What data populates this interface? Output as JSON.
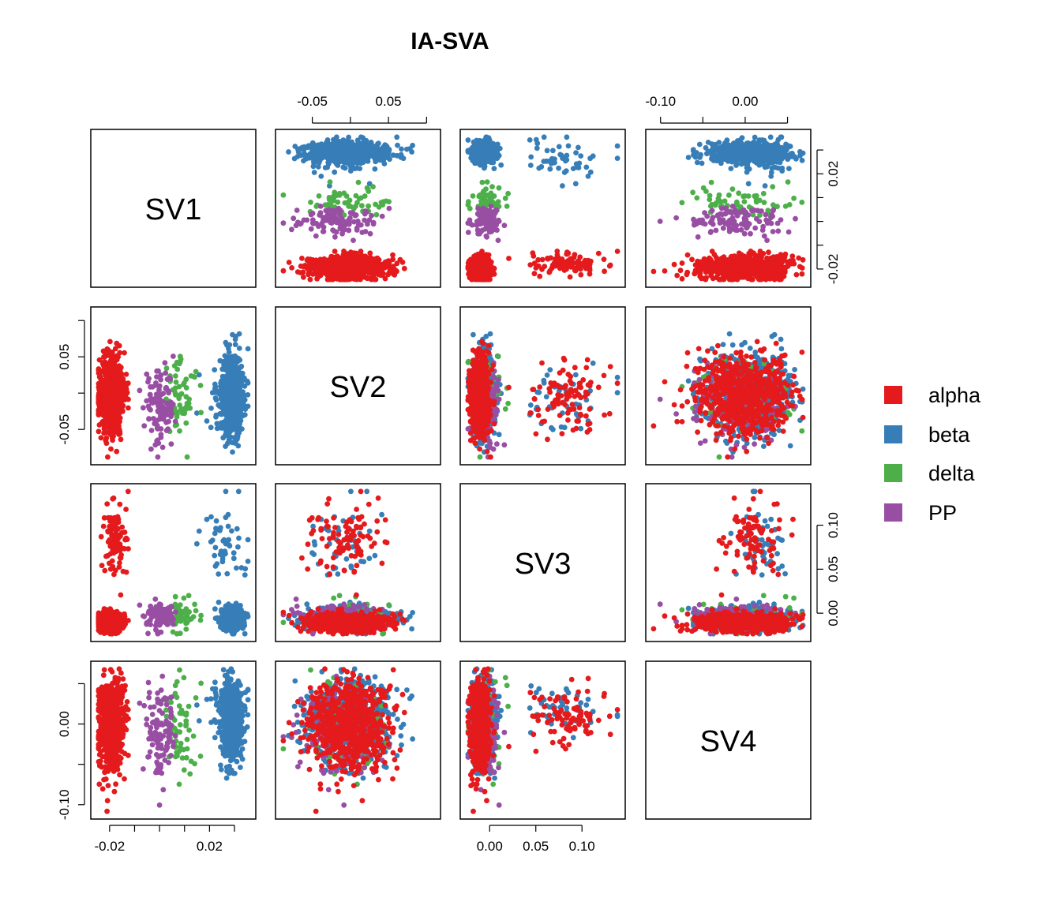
{
  "chart_data": {
    "type": "scatter",
    "title": "IA-SVA",
    "variables": [
      "SV1",
      "SV2",
      "SV3",
      "SV4"
    ],
    "ranges": {
      "SV1": [
        -0.025,
        0.036
      ],
      "SV2": [
        -0.09,
        0.11
      ],
      "SV3": [
        -0.025,
        0.14
      ],
      "SV4": [
        -0.11,
        0.07
      ]
    },
    "ticks": {
      "SV1": {
        "values": [
          -0.02,
          -0.01,
          0.0,
          0.01,
          0.02,
          0.03
        ],
        "labels": [
          "-0.02",
          "",
          "",
          "",
          "0.02",
          ""
        ]
      },
      "SV2": {
        "values": [
          -0.05,
          0.0,
          0.05,
          0.1
        ],
        "labels": [
          "-0.05",
          "",
          "0.05",
          ""
        ]
      },
      "SV3": {
        "values": [
          0.0,
          0.05,
          0.1
        ],
        "labels": [
          "0.00",
          "0.05",
          "0.10"
        ]
      },
      "SV4": {
        "values": [
          -0.1,
          -0.05,
          0.0,
          0.05
        ],
        "labels": [
          "-0.10",
          "",
          "0.00",
          ""
        ]
      }
    },
    "series": [
      {
        "name": "alpha",
        "color": "#e41a1c",
        "n": 700,
        "clusters": [
          {
            "w": 0.86,
            "sv1": [
              -0.0195,
              0.0025
            ],
            "sv2": [
              0.0,
              0.028
            ],
            "sv3": [
              -0.01,
              0.005
            ],
            "sv4": [
              -0.005,
              0.03
            ]
          },
          {
            "w": 0.14,
            "sv1": [
              -0.0175,
              0.0025
            ],
            "sv2": [
              -0.005,
              0.022
            ],
            "sv3": [
              0.085,
              0.02
            ],
            "sv4": [
              0.01,
              0.018
            ]
          }
        ]
      },
      {
        "name": "beta",
        "color": "#377eb8",
        "n": 640,
        "clusters": [
          {
            "w": 0.92,
            "sv1": [
              0.029,
              0.0022
            ],
            "sv2": [
              0.0,
              0.028
            ],
            "sv3": [
              -0.007,
              0.006
            ],
            "sv4": [
              0.005,
              0.025
            ]
          },
          {
            "w": 0.08,
            "sv1": [
              0.026,
              0.005
            ],
            "sv2": [
              -0.01,
              0.02
            ],
            "sv3": [
              0.075,
              0.03
            ],
            "sv4": [
              0.02,
              0.015
            ]
          }
        ]
      },
      {
        "name": "delta",
        "color": "#4daf4a",
        "n": 60,
        "clusters": [
          {
            "w": 1.0,
            "sv1": [
              0.008,
              0.0035
            ],
            "sv2": [
              -0.005,
              0.03
            ],
            "sv3": [
              -0.002,
              0.01
            ],
            "sv4": [
              -0.01,
              0.03
            ]
          }
        ]
      },
      {
        "name": "PP",
        "color": "#984ea3",
        "n": 110,
        "clusters": [
          {
            "w": 1.0,
            "sv1": [
              0.0,
              0.003
            ],
            "sv2": [
              -0.02,
              0.025
            ],
            "sv3": [
              -0.003,
              0.008
            ],
            "sv4": [
              -0.015,
              0.025
            ]
          }
        ]
      }
    ],
    "legend_position": "right"
  }
}
